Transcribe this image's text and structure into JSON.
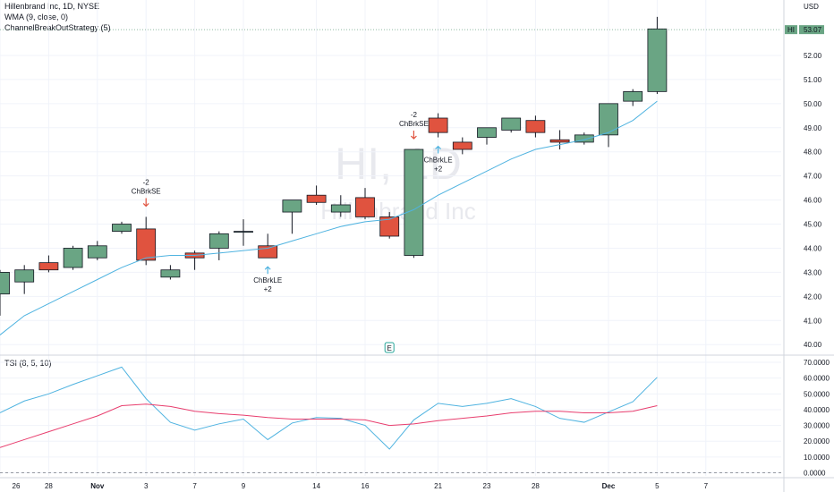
{
  "legend": {
    "title": "Hillenbrand Inc, 1D, NYSE",
    "wma": "WMA (9, close, 0)",
    "strategy": "ChannelBreakOutStrategy (5)",
    "tsi": "TSI (8, 5, 10)"
  },
  "currency": "USD",
  "watermark": {
    "symbol": "HI, 1D",
    "name": "Hillenbrand Inc"
  },
  "colors": {
    "up": "#6aa584",
    "down": "#e0533f",
    "wma": "#4fb3e0",
    "tsi": "#4fb3e0",
    "signal": "#e83e6e",
    "label": "#26a69a"
  },
  "chart_data": [
    {
      "type": "candlestick",
      "title": "Hillenbrand Inc, 1D, NYSE",
      "ylim": [
        39.6,
        54.3
      ],
      "y_ticks": [
        "40.00",
        "41.00",
        "42.00",
        "43.00",
        "44.00",
        "45.00",
        "46.00",
        "47.00",
        "48.00",
        "49.00",
        "50.00",
        "51.00",
        "52.00"
      ],
      "x_ticks": [
        {
          "i": 0,
          "label": "26"
        },
        {
          "i": 2,
          "label": "28"
        },
        {
          "i": 4,
          "label": "Nov"
        },
        {
          "i": 6,
          "label": "3"
        },
        {
          "i": 8,
          "label": "7"
        },
        {
          "i": 10,
          "label": "9"
        },
        {
          "i": 13,
          "label": "14"
        },
        {
          "i": 15,
          "label": "16"
        },
        {
          "i": 18,
          "label": "21"
        },
        {
          "i": 20,
          "label": "23"
        },
        {
          "i": 22,
          "label": "28"
        },
        {
          "i": 25,
          "label": "Dec"
        },
        {
          "i": 27,
          "label": "5"
        },
        {
          "i": 29,
          "label": "7"
        }
      ],
      "last_price": {
        "symbol": "HI",
        "value": "53.07"
      },
      "candles": [
        {
          "o": 42.1,
          "h": 43.1,
          "l": 41.2,
          "c": 43.0
        },
        {
          "o": 42.6,
          "h": 43.3,
          "l": 42.1,
          "c": 43.1
        },
        {
          "o": 43.4,
          "h": 43.7,
          "l": 43.0,
          "c": 43.1
        },
        {
          "o": 43.2,
          "h": 44.1,
          "l": 43.1,
          "c": 44.0
        },
        {
          "o": 43.6,
          "h": 44.3,
          "l": 43.5,
          "c": 44.1
        },
        {
          "o": 44.7,
          "h": 45.1,
          "l": 44.6,
          "c": 45.0
        },
        {
          "o": 44.8,
          "h": 45.3,
          "l": 43.3,
          "c": 43.5
        },
        {
          "o": 42.8,
          "h": 43.3,
          "l": 42.7,
          "c": 43.1
        },
        {
          "o": 43.8,
          "h": 43.9,
          "l": 43.1,
          "c": 43.6
        },
        {
          "o": 44.0,
          "h": 44.7,
          "l": 43.5,
          "c": 44.6
        },
        {
          "o": 44.7,
          "h": 45.2,
          "l": 44.1,
          "c": 44.7
        },
        {
          "o": 44.1,
          "h": 44.6,
          "l": 43.6,
          "c": 43.6
        },
        {
          "o": 45.5,
          "h": 46.0,
          "l": 44.6,
          "c": 46.0
        },
        {
          "o": 46.2,
          "h": 46.6,
          "l": 45.8,
          "c": 45.9
        },
        {
          "o": 45.5,
          "h": 46.2,
          "l": 45.3,
          "c": 45.8
        },
        {
          "o": 46.1,
          "h": 46.5,
          "l": 45.2,
          "c": 45.3
        },
        {
          "o": 45.3,
          "h": 45.5,
          "l": 44.4,
          "c": 44.5
        },
        {
          "o": 43.7,
          "h": 48.1,
          "l": 43.6,
          "c": 48.1
        },
        {
          "o": 49.4,
          "h": 49.6,
          "l": 48.6,
          "c": 48.8
        },
        {
          "o": 48.4,
          "h": 48.6,
          "l": 47.9,
          "c": 48.1
        },
        {
          "o": 48.6,
          "h": 49.0,
          "l": 48.3,
          "c": 49.0
        },
        {
          "o": 48.9,
          "h": 49.4,
          "l": 48.8,
          "c": 49.4
        },
        {
          "o": 49.3,
          "h": 49.5,
          "l": 48.6,
          "c": 48.8
        },
        {
          "o": 48.5,
          "h": 48.9,
          "l": 48.1,
          "c": 48.4
        },
        {
          "o": 48.4,
          "h": 48.8,
          "l": 48.3,
          "c": 48.7
        },
        {
          "o": 48.7,
          "h": 50.0,
          "l": 48.2,
          "c": 50.0
        },
        {
          "o": 50.1,
          "h": 50.6,
          "l": 49.9,
          "c": 50.5
        },
        {
          "o": 50.5,
          "h": 53.6,
          "l": 50.4,
          "c": 53.1
        }
      ],
      "wma": [
        40.4,
        41.2,
        41.7,
        42.2,
        42.7,
        43.2,
        43.6,
        43.7,
        43.7,
        43.8,
        43.9,
        44.0,
        44.3,
        44.6,
        44.9,
        45.1,
        45.2,
        45.6,
        46.2,
        46.7,
        47.2,
        47.7,
        48.1,
        48.3,
        48.5,
        48.8,
        49.3,
        50.1
      ],
      "signals": [
        {
          "i": 6,
          "type": "short",
          "label": "ChBrkSE",
          "qty": "-2"
        },
        {
          "i": 11,
          "type": "long",
          "label": "ChBrkLE",
          "qty": "+2"
        },
        {
          "i": 17,
          "type": "short",
          "label": "ChBrkSE",
          "qty": "-2"
        },
        {
          "i": 18,
          "type": "long",
          "label": "ChBrkLE",
          "qty": "+2"
        }
      ],
      "earnings_marker": "E"
    },
    {
      "type": "line",
      "title": "TSI (8, 5, 10)",
      "ylim": [
        -2,
        74
      ],
      "y_ticks": [
        "0.0000",
        "10.0000",
        "20.0000",
        "30.0000",
        "40.0000",
        "50.0000",
        "60.0000",
        "70.0000"
      ],
      "series": [
        {
          "name": "TSI",
          "values": [
            38,
            45.5,
            50,
            56,
            61.5,
            67,
            47,
            32,
            27,
            31,
            34,
            21,
            31.5,
            35,
            34.5,
            30,
            15,
            33.5,
            44,
            42,
            44,
            47,
            42,
            34.5,
            32,
            38.5,
            45,
            60.5
          ]
        },
        {
          "name": "Signal",
          "values": [
            16,
            21,
            26,
            31,
            36,
            42.5,
            43.5,
            42,
            39,
            37.5,
            36.5,
            35,
            34,
            34,
            34,
            33.5,
            30,
            31,
            33,
            34.5,
            36,
            38,
            39,
            39,
            38,
            38,
            39,
            42.5
          ]
        }
      ]
    }
  ]
}
